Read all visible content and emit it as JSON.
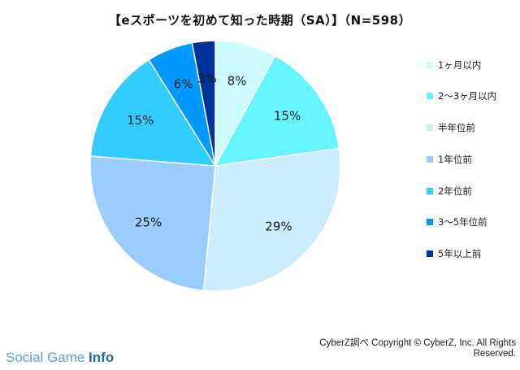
{
  "chart_data": {
    "type": "pie",
    "title": "【eスポーツを初めて知った時期（SA）】（N=598）",
    "categories": [
      "1ヶ月以内",
      "2～3ヶ月以内",
      "半年位前",
      "1年位前",
      "2年位前",
      "3～5年位前",
      "5年以上前"
    ],
    "values": [
      8,
      15,
      29,
      25,
      15,
      6,
      3
    ],
    "labels": [
      "8%",
      "15%",
      "29%",
      "25%",
      "15%",
      "6%",
      "3%"
    ],
    "colors": [
      "#ccfcff",
      "#66f5ff",
      "#ccecff",
      "#99ccff",
      "#33ccff",
      "#0099ff",
      "#003399"
    ],
    "legend_position": "right",
    "start_angle": "12 o'clock",
    "direction": "clockwise"
  },
  "footer": {
    "copyright": "CyberZ調べ Copyright © CyberZ, Inc. All Rights Reserved.",
    "brand_plain": "Social Game ",
    "brand_bold": "Info"
  }
}
